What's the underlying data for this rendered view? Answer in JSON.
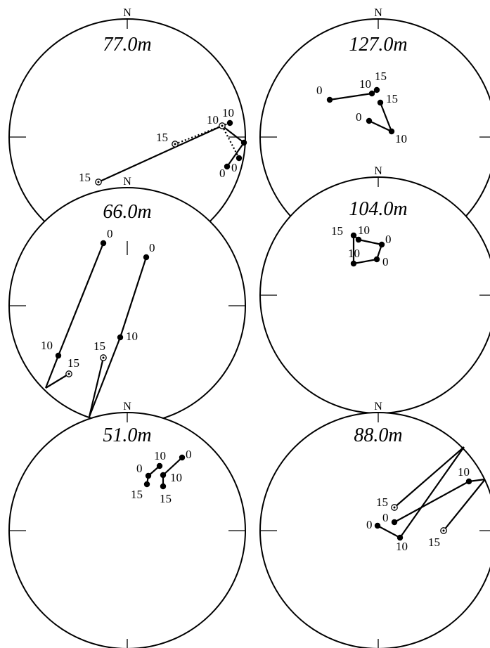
{
  "figure": {
    "panels": [
      {
        "id": "77",
        "title": "77.0m",
        "north_label": "N",
        "points": [
          {
            "id": "a0",
            "label": "0",
            "style": "filled"
          },
          {
            "id": "a10",
            "label": "10",
            "style": "filled"
          },
          {
            "id": "a15",
            "label": "15",
            "style": "open"
          },
          {
            "id": "b0",
            "label": "0",
            "style": "filled"
          },
          {
            "id": "b10",
            "label": "10",
            "style": "open"
          },
          {
            "id": "b15",
            "label": "15",
            "style": "open"
          },
          {
            "id": "x1",
            "label": "",
            "style": "filled"
          }
        ],
        "segments": [
          {
            "from": "a0",
            "to": "x1",
            "style": "solid"
          },
          {
            "from": "x1",
            "to": "b10",
            "style": "solid"
          },
          {
            "from": "b10",
            "to": "a15",
            "style": "solid"
          },
          {
            "from": "b0",
            "to": "b10",
            "style": "dotted"
          },
          {
            "from": "b10",
            "to": "b15",
            "style": "dotted"
          },
          {
            "from": "a10",
            "to": "b10",
            "style": "dotted"
          }
        ]
      },
      {
        "id": "127",
        "title": "127.0m",
        "north_label": "N",
        "points": [
          {
            "id": "a0",
            "label": "0",
            "style": "filled"
          },
          {
            "id": "a10",
            "label": "10",
            "style": "filled"
          },
          {
            "id": "a15",
            "label": "15",
            "style": "filled"
          },
          {
            "id": "b0",
            "label": "0",
            "style": "filled"
          },
          {
            "id": "b10",
            "label": "10",
            "style": "filled"
          },
          {
            "id": "b15",
            "label": "15",
            "style": "filled"
          }
        ],
        "segments": [
          {
            "from": "a0",
            "to": "a10",
            "style": "solid"
          },
          {
            "from": "a10",
            "to": "a15",
            "style": "solid"
          },
          {
            "from": "b0",
            "to": "b10",
            "style": "solid"
          },
          {
            "from": "b10",
            "to": "b15",
            "style": "solid"
          }
        ]
      },
      {
        "id": "66",
        "title": "66.0m",
        "north_label": "N",
        "points": [
          {
            "id": "a0",
            "label": "0",
            "style": "filled"
          },
          {
            "id": "a10",
            "label": "10",
            "style": "filled"
          },
          {
            "id": "a15",
            "label": "15",
            "style": "open"
          },
          {
            "id": "b0",
            "label": "0",
            "style": "filled"
          },
          {
            "id": "b10",
            "label": "10",
            "style": "filled"
          },
          {
            "id": "b15",
            "label": "15",
            "style": "open"
          },
          {
            "id": "ea",
            "label": "",
            "style": "none"
          },
          {
            "id": "eb",
            "label": "",
            "style": "none"
          }
        ],
        "segments": [
          {
            "from": "a0",
            "to": "a10",
            "style": "solid"
          },
          {
            "from": "a10",
            "to": "ea",
            "style": "solid"
          },
          {
            "from": "ea",
            "to": "a15",
            "style": "solid"
          },
          {
            "from": "b0",
            "to": "b10",
            "style": "solid"
          },
          {
            "from": "b10",
            "to": "eb",
            "style": "solid"
          },
          {
            "from": "eb",
            "to": "b15",
            "style": "solid"
          }
        ]
      },
      {
        "id": "104",
        "title": "104.0m",
        "north_label": "N",
        "points": [
          {
            "id": "a0",
            "label": "0",
            "style": "filled"
          },
          {
            "id": "a10",
            "label": "10",
            "style": "filled"
          },
          {
            "id": "a15",
            "label": "15",
            "style": "filled"
          },
          {
            "id": "b0",
            "label": "0",
            "style": "filled"
          },
          {
            "id": "b10",
            "label": "10",
            "style": "filled"
          }
        ],
        "segments": [
          {
            "from": "a0",
            "to": "a10",
            "style": "solid"
          },
          {
            "from": "a10",
            "to": "a15",
            "style": "solid"
          },
          {
            "from": "a15",
            "to": "b10",
            "style": "solid"
          },
          {
            "from": "b10",
            "to": "b0",
            "style": "solid"
          },
          {
            "from": "b0",
            "to": "a0",
            "style": "solid"
          }
        ]
      },
      {
        "id": "51",
        "title": "51.0m",
        "north_label": "N",
        "points": [
          {
            "id": "a0",
            "label": "0",
            "style": "filled"
          },
          {
            "id": "a10",
            "label": "10",
            "style": "filled"
          },
          {
            "id": "a15",
            "label": "15",
            "style": "filled"
          },
          {
            "id": "b0",
            "label": "0",
            "style": "filled"
          },
          {
            "id": "b10",
            "label": "10",
            "style": "filled"
          },
          {
            "id": "b15",
            "label": "15",
            "style": "filled"
          }
        ],
        "segments": [
          {
            "from": "a15",
            "to": "a0",
            "style": "solid"
          },
          {
            "from": "a0",
            "to": "a10",
            "style": "solid"
          },
          {
            "from": "b0",
            "to": "b10",
            "style": "solid"
          },
          {
            "from": "b10",
            "to": "b15",
            "style": "solid"
          }
        ]
      },
      {
        "id": "88",
        "title": "88.0m",
        "north_label": "N",
        "points": [
          {
            "id": "a0",
            "label": "0",
            "style": "filled"
          },
          {
            "id": "a10",
            "label": "10",
            "style": "filled"
          },
          {
            "id": "a15",
            "label": "15",
            "style": "open"
          },
          {
            "id": "b0",
            "label": "0",
            "style": "filled"
          },
          {
            "id": "b10",
            "label": "10",
            "style": "filled"
          },
          {
            "id": "b15",
            "label": "15",
            "style": "open"
          },
          {
            "id": "ea",
            "label": "",
            "style": "none"
          },
          {
            "id": "eb",
            "label": "",
            "style": "none"
          }
        ],
        "segments": [
          {
            "from": "a0",
            "to": "a10",
            "style": "solid"
          },
          {
            "from": "a10",
            "to": "ea",
            "style": "solid"
          },
          {
            "from": "ea",
            "to": "a15",
            "style": "solid"
          },
          {
            "from": "b0",
            "to": "b10",
            "style": "solid"
          },
          {
            "from": "b10",
            "to": "eb",
            "style": "solid"
          },
          {
            "from": "eb",
            "to": "b15",
            "style": "solid"
          }
        ]
      }
    ]
  }
}
